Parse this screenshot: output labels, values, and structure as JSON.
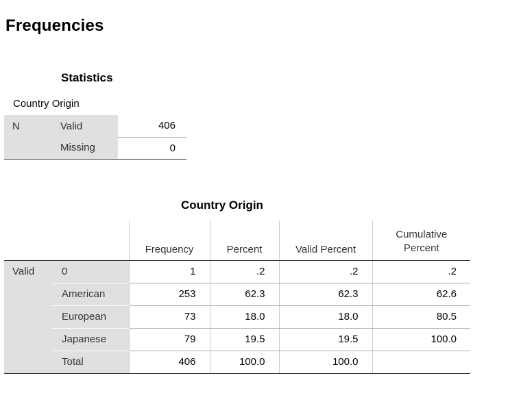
{
  "page": {
    "title": "Frequencies"
  },
  "statistics": {
    "title": "Statistics",
    "variable": "Country Origin",
    "row_label": "N",
    "rows": [
      {
        "label": "Valid",
        "value": "406"
      },
      {
        "label": "Missing",
        "value": "0"
      }
    ]
  },
  "frequency_table": {
    "title": "Country Origin",
    "headers": {
      "frequency": "Frequency",
      "percent": "Percent",
      "valid_percent": "Valid Percent",
      "cumulative_percent": "Cumulative Percent"
    },
    "group_label": "Valid",
    "rows": [
      {
        "label": "0",
        "frequency": "1",
        "percent": ".2",
        "valid_percent": ".2",
        "cumulative_percent": ".2"
      },
      {
        "label": "American",
        "frequency": "253",
        "percent": "62.3",
        "valid_percent": "62.3",
        "cumulative_percent": "62.6"
      },
      {
        "label": "European",
        "frequency": "73",
        "percent": "18.0",
        "valid_percent": "18.0",
        "cumulative_percent": "80.5"
      },
      {
        "label": "Japanese",
        "frequency": "79",
        "percent": "19.5",
        "valid_percent": "19.5",
        "cumulative_percent": "100.0"
      },
      {
        "label": "Total",
        "frequency": "406",
        "percent": "100.0",
        "valid_percent": "100.0",
        "cumulative_percent": ""
      }
    ]
  }
}
